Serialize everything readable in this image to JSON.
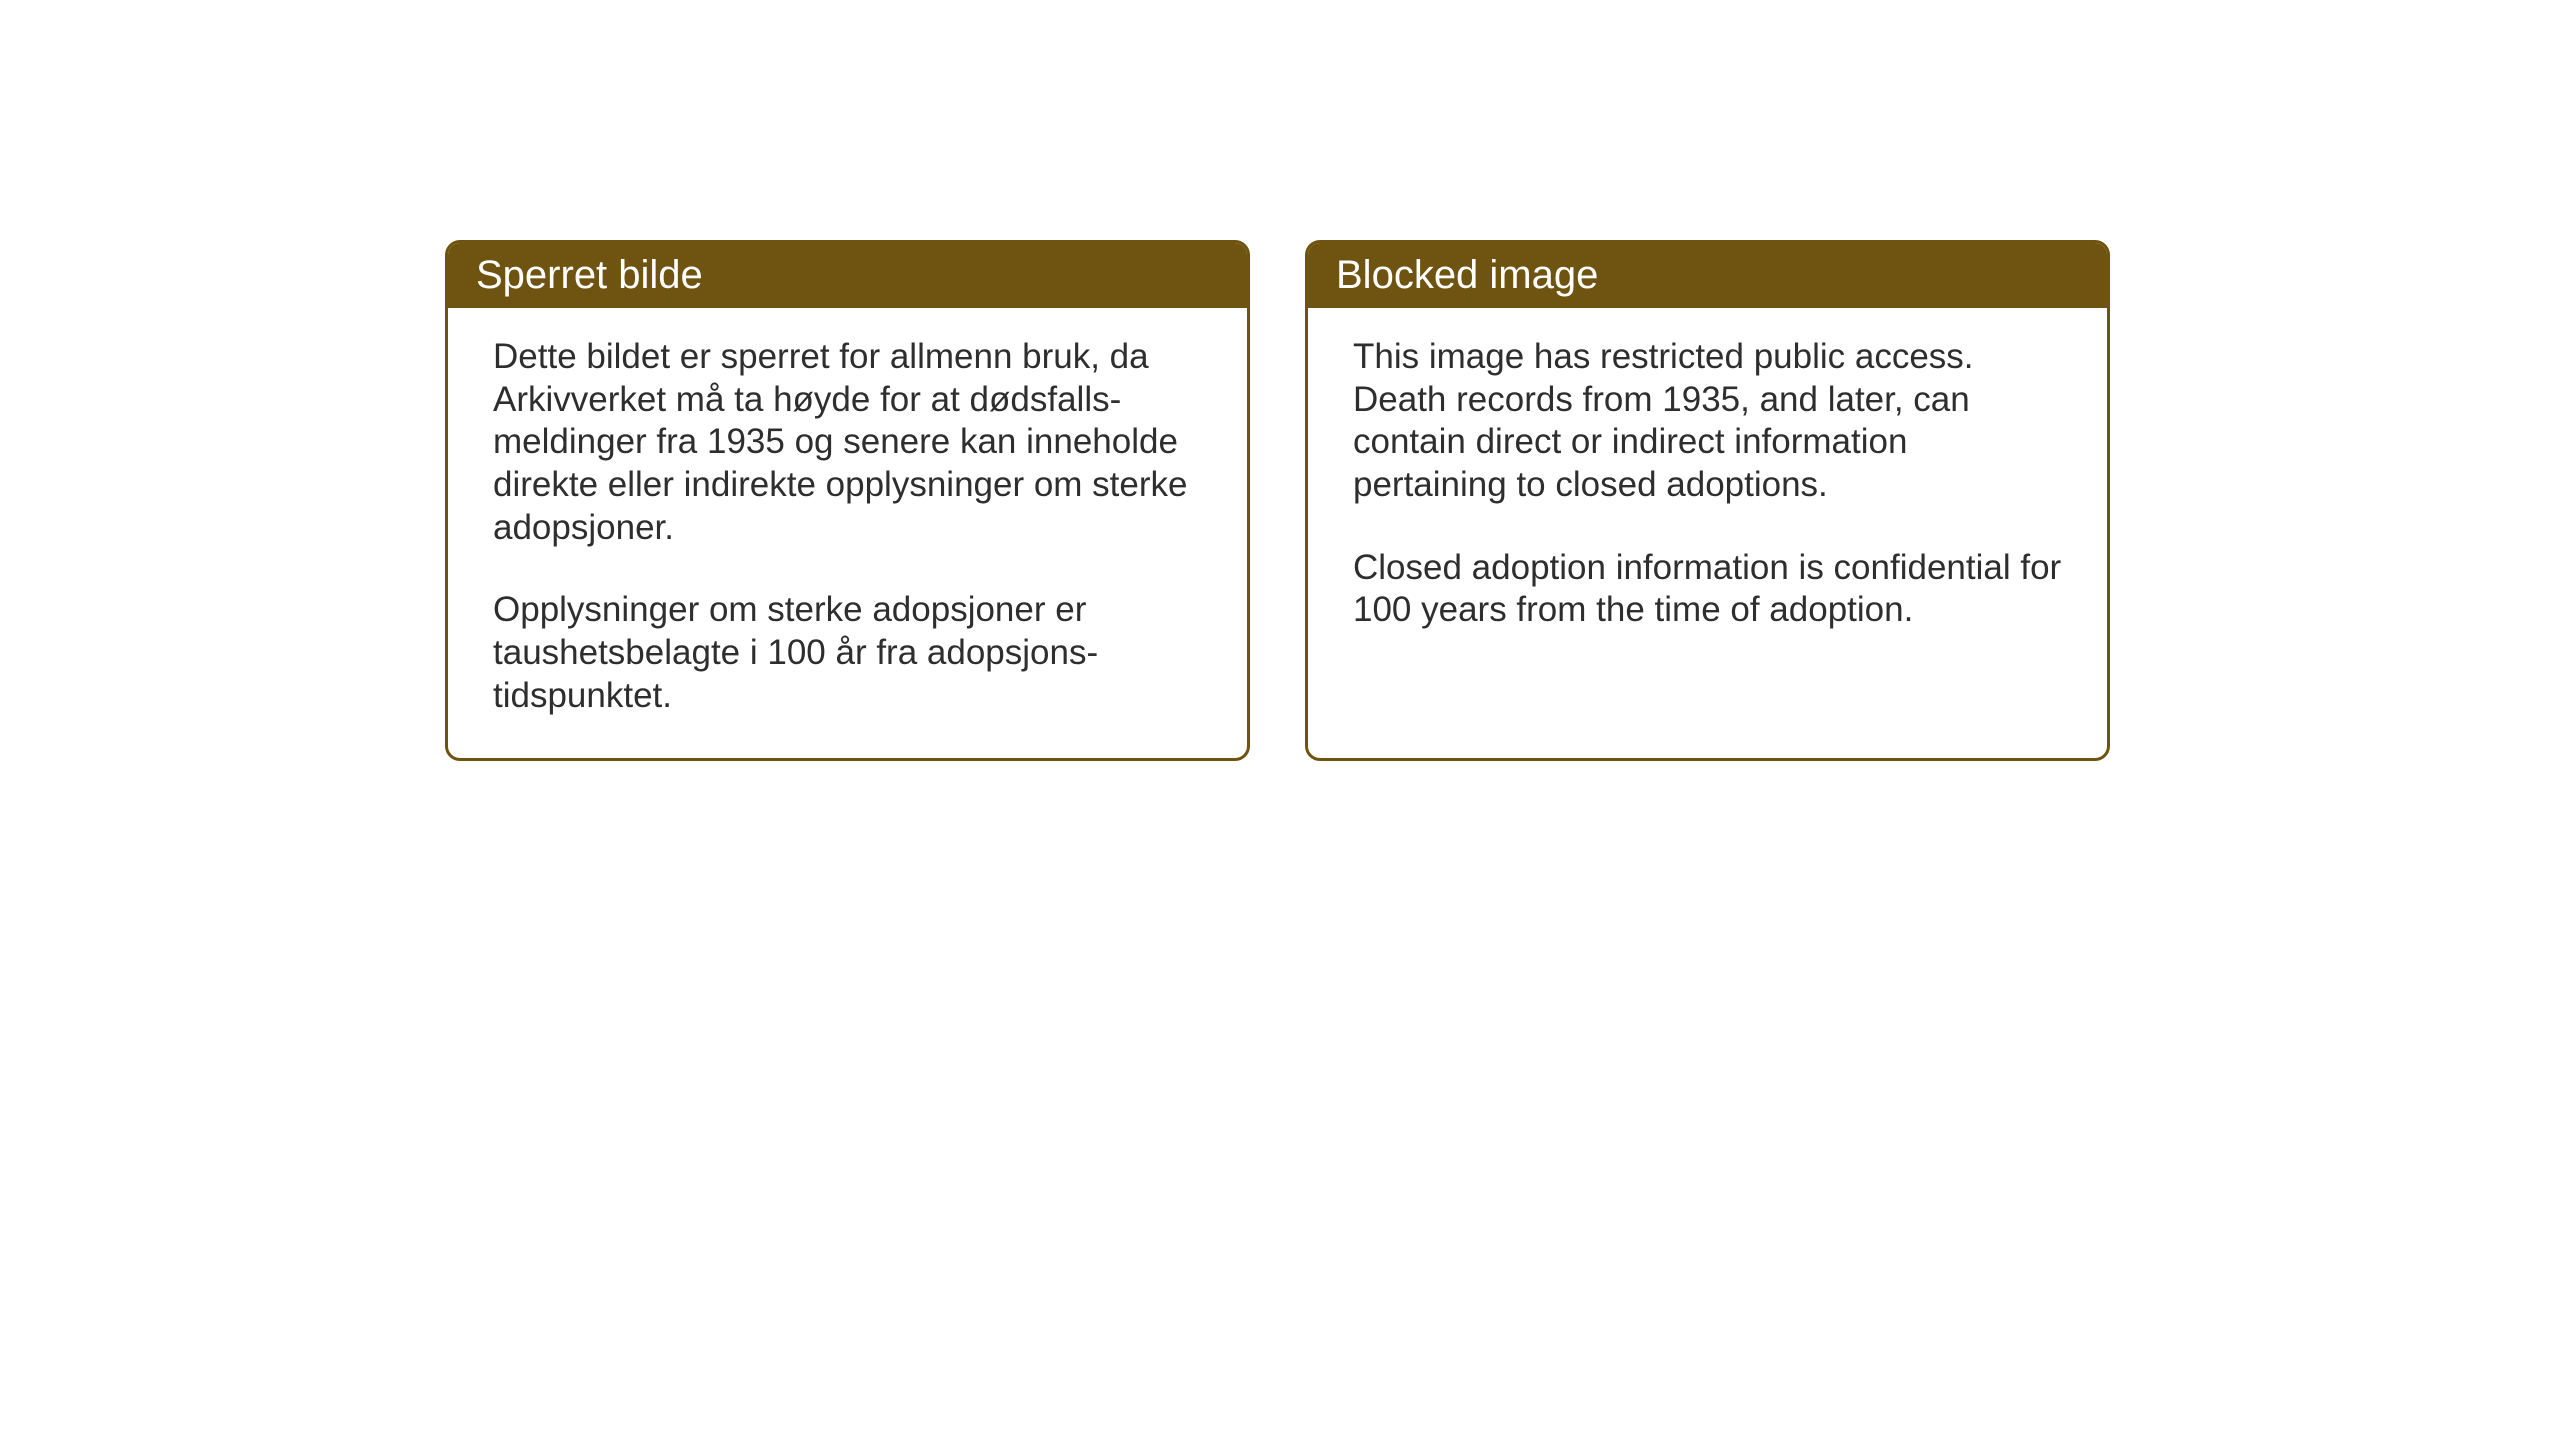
{
  "background_color": "#ffffff",
  "card_border_color": "#6e5410",
  "header_bg_color": "#6e5410",
  "header_text_color": "#ffffff",
  "body_text_color": "#2e2e2e",
  "header_fontsize": 40,
  "body_fontsize": 35,
  "card_border_radius": 15,
  "card_border_width": 3,
  "cards": {
    "norwegian": {
      "title": "Sperret bilde",
      "paragraph1": "Dette bildet er sperret for allmenn bruk, da Arkivverket må ta høyde for at dødsfalls-meldinger fra 1935 og senere kan inneholde direkte eller indirekte opplysninger om sterke adopsjoner.",
      "paragraph2": "Opplysninger om sterke adopsjoner er taushetsbelagte i 100 år fra adopsjons-tidspunktet."
    },
    "english": {
      "title": "Blocked image",
      "paragraph1": "This image has restricted public access. Death records from 1935, and later, can contain direct or indirect information pertaining to closed adoptions.",
      "paragraph2": "Closed adoption information is confidential for 100 years from the time of adoption."
    }
  }
}
